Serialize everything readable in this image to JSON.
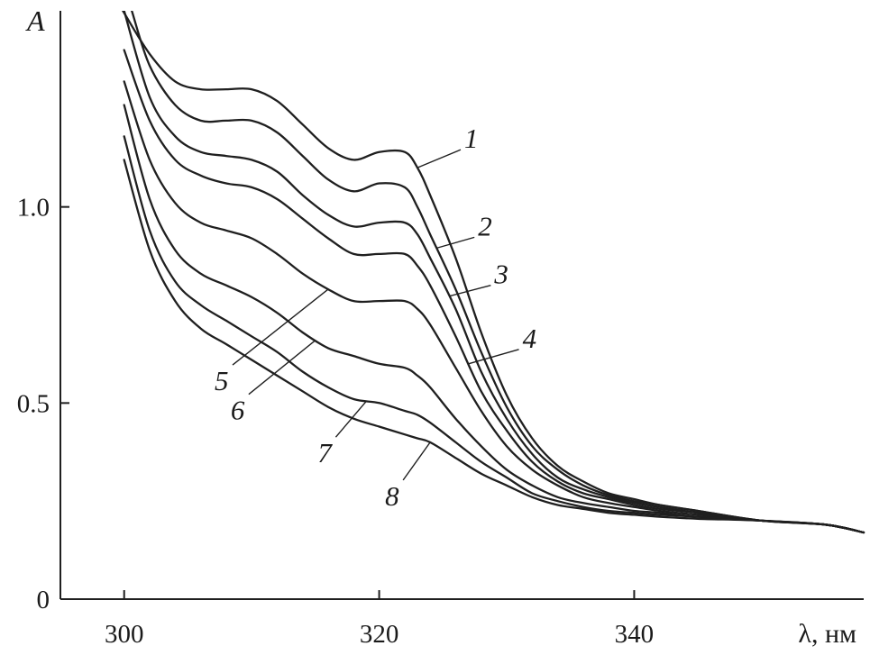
{
  "chart_data": {
    "type": "line",
    "ylabel": "A",
    "xlabel": "λ, нм",
    "xlim": [
      295,
      358
    ],
    "ylim": [
      0,
      1.5
    ],
    "x_ticks": [
      {
        "value": 300,
        "label": "300"
      },
      {
        "value": 320,
        "label": "320"
      },
      {
        "value": 340,
        "label": "340"
      }
    ],
    "y_ticks": [
      {
        "value": 0,
        "label": "0"
      },
      {
        "value": 0.5,
        "label": "0.5"
      },
      {
        "value": 1.0,
        "label": "1.0"
      }
    ],
    "grid": false,
    "legend": "none",
    "series": [
      {
        "name": "1",
        "x": [
          299.9,
          302,
          304,
          306,
          308,
          310,
          312,
          314,
          316,
          318,
          320,
          322,
          323,
          324,
          326,
          328,
          330,
          332,
          334,
          336,
          338,
          340,
          342,
          345,
          350,
          355,
          358
        ],
        "y": [
          1.5,
          1.39,
          1.32,
          1.3,
          1.3,
          1.3,
          1.27,
          1.21,
          1.15,
          1.12,
          1.14,
          1.14,
          1.1,
          1.03,
          0.87,
          0.68,
          0.52,
          0.41,
          0.34,
          0.3,
          0.27,
          0.255,
          0.24,
          0.225,
          0.2,
          0.19,
          0.17
        ]
      },
      {
        "name": "2",
        "x": [
          300.6,
          302,
          304,
          306,
          308,
          310,
          312,
          314,
          316,
          318,
          320,
          322,
          323,
          324,
          326,
          328,
          330,
          332,
          334,
          336,
          338,
          340,
          342,
          345,
          350,
          355,
          358
        ],
        "y": [
          1.5,
          1.36,
          1.26,
          1.22,
          1.22,
          1.22,
          1.19,
          1.13,
          1.07,
          1.04,
          1.06,
          1.05,
          1.0,
          0.93,
          0.79,
          0.63,
          0.49,
          0.39,
          0.33,
          0.29,
          0.265,
          0.25,
          0.24,
          0.225,
          0.2,
          0.19,
          0.17
        ]
      },
      {
        "name": "3",
        "x": [
          300,
          302,
          304,
          306,
          308,
          310,
          312,
          314,
          316,
          318,
          320,
          322,
          323,
          324,
          326,
          328,
          330,
          332,
          334,
          336,
          338,
          340,
          342,
          345,
          350,
          355,
          358
        ],
        "y": [
          1.5,
          1.28,
          1.18,
          1.14,
          1.13,
          1.12,
          1.09,
          1.03,
          0.98,
          0.95,
          0.96,
          0.96,
          0.93,
          0.87,
          0.74,
          0.58,
          0.46,
          0.37,
          0.31,
          0.28,
          0.26,
          0.245,
          0.235,
          0.22,
          0.2,
          0.19,
          0.17
        ]
      },
      {
        "name": "4",
        "x": [
          300,
          302,
          304,
          306,
          308,
          310,
          312,
          314,
          316,
          318,
          320,
          322,
          323,
          324,
          326,
          328,
          330,
          332,
          334,
          336,
          338,
          340,
          342,
          345,
          350,
          355,
          358
        ],
        "y": [
          1.4,
          1.22,
          1.12,
          1.08,
          1.06,
          1.05,
          1.02,
          0.97,
          0.92,
          0.88,
          0.88,
          0.88,
          0.85,
          0.8,
          0.67,
          0.53,
          0.43,
          0.35,
          0.3,
          0.27,
          0.255,
          0.24,
          0.23,
          0.22,
          0.2,
          0.19,
          0.17
        ]
      },
      {
        "name": "5",
        "x": [
          300,
          302,
          304,
          306,
          308,
          310,
          312,
          314,
          316,
          318,
          320,
          322,
          323,
          324,
          326,
          328,
          330,
          332,
          334,
          336,
          338,
          340,
          342,
          345,
          350,
          355,
          358
        ],
        "y": [
          1.32,
          1.12,
          1.01,
          0.96,
          0.94,
          0.92,
          0.88,
          0.83,
          0.79,
          0.76,
          0.76,
          0.76,
          0.74,
          0.7,
          0.59,
          0.48,
          0.39,
          0.33,
          0.29,
          0.26,
          0.245,
          0.235,
          0.225,
          0.215,
          0.2,
          0.19,
          0.17
        ]
      },
      {
        "name": "6",
        "x": [
          300,
          302,
          304,
          306,
          308,
          310,
          312,
          314,
          316,
          318,
          320,
          322,
          323,
          324,
          326,
          328,
          330,
          332,
          334,
          336,
          338,
          340,
          342,
          345,
          350,
          355,
          358
        ],
        "y": [
          1.26,
          1.02,
          0.89,
          0.83,
          0.8,
          0.77,
          0.73,
          0.68,
          0.64,
          0.62,
          0.6,
          0.59,
          0.57,
          0.54,
          0.46,
          0.39,
          0.33,
          0.29,
          0.26,
          0.245,
          0.235,
          0.225,
          0.22,
          0.21,
          0.2,
          0.19,
          0.17
        ]
      },
      {
        "name": "7",
        "x": [
          300,
          302,
          304,
          306,
          308,
          310,
          312,
          314,
          316,
          318,
          320,
          322,
          323,
          324,
          326,
          328,
          330,
          332,
          334,
          336,
          338,
          340,
          342,
          345,
          350,
          355,
          358
        ],
        "y": [
          1.18,
          0.94,
          0.81,
          0.75,
          0.71,
          0.67,
          0.63,
          0.58,
          0.54,
          0.51,
          0.5,
          0.48,
          0.47,
          0.45,
          0.4,
          0.35,
          0.31,
          0.27,
          0.25,
          0.235,
          0.225,
          0.22,
          0.215,
          0.21,
          0.2,
          0.19,
          0.17
        ]
      },
      {
        "name": "8",
        "x": [
          300,
          302,
          304,
          306,
          308,
          310,
          312,
          314,
          316,
          318,
          320,
          322,
          323,
          324,
          326,
          328,
          330,
          332,
          334,
          336,
          338,
          340,
          342,
          345,
          350,
          355,
          358
        ],
        "y": [
          1.12,
          0.89,
          0.76,
          0.69,
          0.65,
          0.61,
          0.57,
          0.53,
          0.49,
          0.46,
          0.44,
          0.42,
          0.41,
          0.4,
          0.36,
          0.32,
          0.29,
          0.26,
          0.24,
          0.23,
          0.22,
          0.215,
          0.21,
          0.205,
          0.2,
          0.19,
          0.17
        ]
      }
    ],
    "curve_labels": [
      {
        "text": "1",
        "series": "1",
        "at_x": 323
      },
      {
        "text": "2",
        "series": "2",
        "at_x": 324.5
      },
      {
        "text": "3",
        "series": "3",
        "at_x": 325.5
      },
      {
        "text": "4",
        "series": "4",
        "at_x": 327
      },
      {
        "text": "5",
        "series": "5",
        "at_x": 316
      },
      {
        "text": "6",
        "series": "6",
        "at_x": 315
      },
      {
        "text": "7",
        "series": "7",
        "at_x": 319
      },
      {
        "text": "8",
        "series": "8",
        "at_x": 324
      }
    ]
  }
}
